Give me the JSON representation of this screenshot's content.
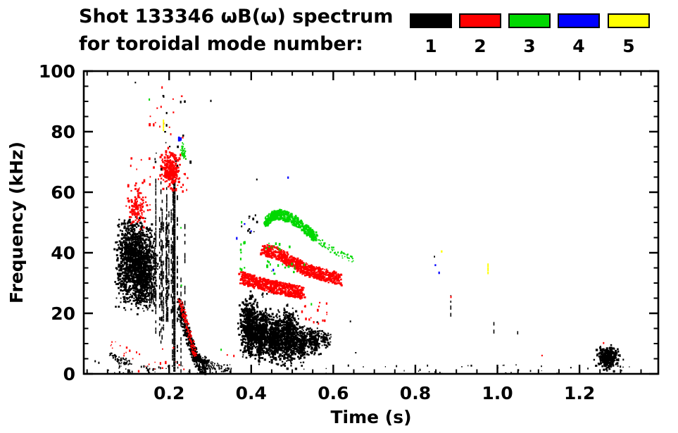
{
  "title": {
    "line1": "Shot 133346 ωB(ω) spectrum",
    "line2": "for toroidal mode number:"
  },
  "legend": {
    "entries": [
      {
        "label": "1",
        "color": "#000000"
      },
      {
        "label": "2",
        "color": "#ff0000"
      },
      {
        "label": "3",
        "color": "#00d800"
      },
      {
        "label": "4",
        "color": "#0000ff"
      },
      {
        "label": "5",
        "color": "#ffff00"
      }
    ]
  },
  "chart_data": {
    "type": "scatter",
    "title": "Shot 133346 ωB(ω) spectrum for toroidal mode number: 1 2 3 4 5",
    "xlabel": "Time (s)",
    "ylabel": "Frequency (kHz)",
    "xlim": [
      -0.008,
      1.392
    ],
    "ylim": [
      0,
      100
    ],
    "grid": false,
    "legend_position": "top-right",
    "xticks": {
      "major": [
        0.2,
        0.4,
        0.6,
        0.8,
        1.0,
        1.2
      ],
      "labels": [
        "0.2",
        "0.4",
        "0.6",
        "0.8",
        "1.0",
        "1.2"
      ],
      "minor_step": 0.05
    },
    "yticks": {
      "major": [
        0,
        20,
        40,
        60,
        80,
        100
      ],
      "labels": [
        "0",
        "20",
        "40",
        "60",
        "80",
        "100"
      ],
      "minor_step": 5
    },
    "series": [
      {
        "name": "toroidal mode n=1",
        "color": "#000000",
        "clusters": [
          {
            "type": "gauss",
            "cx": 0.115,
            "cy": 37.5,
            "sx": 0.021,
            "sy": 6.0,
            "n": 1300,
            "size": 2.6
          },
          {
            "type": "gauss",
            "cx": 0.136,
            "cy": 29.5,
            "sx": 0.012,
            "sy": 4.0,
            "n": 320,
            "size": 2.4
          },
          {
            "type": "vlines",
            "t0": 0.148,
            "t1": 0.244,
            "fb": [
              4,
              26
            ],
            "ft": [
              42,
              66
            ],
            "n": 24,
            "w": 1.6
          },
          {
            "type": "vdash",
            "t": 0.21,
            "f0": 1,
            "f1": 63.5,
            "w": 3.2,
            "solid": true
          },
          {
            "type": "vdash",
            "t": 0.2185,
            "f0": 2,
            "f1": 59,
            "w": 1.8,
            "solid": false
          },
          {
            "type": "vdash",
            "t": 0.2275,
            "f0": 1.5,
            "f1": 34,
            "w": 1.5,
            "solid": false
          },
          {
            "type": "box",
            "t0": 0.16,
            "t1": 0.25,
            "f0": 64,
            "f1": 93,
            "n": 22,
            "size": 2.2
          },
          {
            "type": "pts",
            "pts": [
              [
                0.116,
                96.5
              ],
              [
                0.3,
                90.5
              ],
              [
                0.185,
                92
              ],
              [
                0.018,
                4.5
              ],
              [
                0.027,
                4
              ]
            ],
            "size": 2
          },
          {
            "type": "band",
            "pts": [
              [
                0.222,
                23
              ],
              [
                0.244,
                13
              ],
              [
                0.264,
                5
              ],
              [
                0.288,
                1.5
              ]
            ],
            "th": 5,
            "n": 430,
            "size": 2.4
          },
          {
            "type": "band",
            "pts": [
              [
                0.28,
                5
              ],
              [
                0.308,
                2.5
              ],
              [
                0.345,
                2
              ]
            ],
            "th": 2.5,
            "n": 90,
            "size": 1.8
          },
          {
            "type": "band",
            "pts": [
              [
                0.057,
                6.5
              ],
              [
                0.08,
                4.5
              ],
              [
                0.102,
                4
              ]
            ],
            "th": 2,
            "n": 70,
            "size": 1.8
          },
          {
            "type": "box",
            "t0": 0.05,
            "t1": 0.36,
            "f0": 0.3,
            "f1": 3,
            "n": 46,
            "size": 1.7
          },
          {
            "type": "gauss",
            "cx": 0.394,
            "cy": 15.5,
            "sx": 0.011,
            "sy": 4.2,
            "n": 520,
            "size": 2.6
          },
          {
            "type": "gauss",
            "cx": 0.424,
            "cy": 13.0,
            "sx": 0.009,
            "sy": 3.6,
            "n": 400,
            "size": 2.6
          },
          {
            "type": "gauss",
            "cx": 0.455,
            "cy": 11.5,
            "sx": 0.008,
            "sy": 3.2,
            "n": 320,
            "size": 2.6
          },
          {
            "type": "gauss",
            "cx": 0.488,
            "cy": 12.5,
            "sx": 0.011,
            "sy": 4.0,
            "n": 520,
            "size": 2.6
          },
          {
            "type": "gauss",
            "cx": 0.521,
            "cy": 10.5,
            "sx": 0.007,
            "sy": 2.8,
            "n": 220,
            "size": 2.4
          },
          {
            "type": "gauss",
            "cx": 0.548,
            "cy": 11.5,
            "sx": 0.008,
            "sy": 2.2,
            "n": 190,
            "size": 2.4
          },
          {
            "type": "gauss",
            "cx": 0.578,
            "cy": 11.5,
            "sx": 0.006,
            "sy": 1.4,
            "n": 70,
            "size": 2.2
          },
          {
            "type": "band",
            "pts": [
              [
                0.378,
                20
              ],
              [
                0.43,
                19
              ],
              [
                0.47,
                17
              ],
              [
                0.515,
                15
              ]
            ],
            "th": 3,
            "n": 170,
            "size": 2.2
          },
          {
            "type": "box",
            "t0": 0.378,
            "t1": 0.455,
            "f0": 23,
            "f1": 30,
            "n": 16,
            "size": 2.0
          },
          {
            "type": "box",
            "t0": 0.388,
            "t1": 0.414,
            "f0": 47,
            "f1": 54,
            "n": 9,
            "size": 2.0
          },
          {
            "type": "pts",
            "pts": [
              [
                0.412,
                64.5
              ],
              [
                0.375,
                49
              ],
              [
                0.49,
                53.5
              ],
              [
                0.64,
                17.6
              ],
              [
                0.653,
                7.2
              ],
              [
                0.59,
                10
              ]
            ],
            "size": 2
          },
          {
            "type": "vdash",
            "t": 0.885,
            "f0": 16,
            "f1": 26,
            "w": 1.6,
            "solid": false
          },
          {
            "type": "pts",
            "pts": [
              [
                0.845,
                39
              ]
            ],
            "size": 1.8
          },
          {
            "type": "vdash",
            "t": 0.99,
            "f0": 12.5,
            "f1": 19,
            "w": 1.6,
            "solid": false
          },
          {
            "type": "vdash",
            "t": 1.048,
            "f0": 14,
            "f1": 17.5,
            "w": 1.6,
            "solid": false
          },
          {
            "type": "gauss",
            "cx": 1.266,
            "cy": 5.5,
            "sx": 0.012,
            "sy": 1.7,
            "n": 280,
            "size": 2.6
          },
          {
            "type": "pts",
            "pts": [
              [
                1.297,
                6.5
              ],
              [
                1.305,
                5
              ],
              [
                1.24,
                3
              ]
            ],
            "size": 2
          },
          {
            "type": "box",
            "t0": 0.52,
            "t1": 1.35,
            "f0": 0.3,
            "f1": 3.2,
            "n": 40,
            "size": 1.6
          }
        ]
      },
      {
        "name": "toroidal mode n=2",
        "color": "#ff0000",
        "clusters": [
          {
            "type": "gauss",
            "cx": 0.118,
            "cy": 55.5,
            "sx": 0.012,
            "sy": 3.0,
            "n": 130,
            "size": 2.4
          },
          {
            "type": "box",
            "t0": 0.095,
            "t1": 0.17,
            "f0": 60,
            "f1": 72,
            "n": 14,
            "size": 2.2
          },
          {
            "type": "gauss",
            "cx": 0.201,
            "cy": 67.5,
            "sx": 0.011,
            "sy": 2.3,
            "n": 260,
            "size": 2.6
          },
          {
            "type": "box",
            "t0": 0.17,
            "t1": 0.245,
            "f0": 60,
            "f1": 75,
            "n": 26,
            "size": 2.2
          },
          {
            "type": "box",
            "t0": 0.14,
            "t1": 0.24,
            "f0": 78,
            "f1": 92,
            "n": 13,
            "size": 2.2
          },
          {
            "type": "band",
            "pts": [
              [
                0.224,
                25
              ],
              [
                0.243,
                16
              ],
              [
                0.262,
                6
              ]
            ],
            "th": 1.6,
            "n": 110,
            "size": 2.0
          },
          {
            "type": "box",
            "t0": 0.055,
            "t1": 0.105,
            "f0": 6,
            "f1": 11,
            "n": 12,
            "size": 1.8
          },
          {
            "type": "box",
            "t0": 0.1,
            "t1": 0.24,
            "f0": 1,
            "f1": 9,
            "n": 16,
            "size": 1.8
          },
          {
            "type": "band",
            "pts": [
              [
                0.373,
                32
              ],
              [
                0.41,
                30.5
              ],
              [
                0.45,
                29
              ],
              [
                0.49,
                28
              ],
              [
                0.525,
                27
              ]
            ],
            "th": 4.2,
            "n": 640,
            "size": 2.5
          },
          {
            "type": "band",
            "pts": [
              [
                0.425,
                41.5
              ],
              [
                0.465,
                40
              ],
              [
                0.5,
                37
              ],
              [
                0.535,
                34.5
              ],
              [
                0.575,
                33
              ],
              [
                0.615,
                31.5
              ]
            ],
            "th": 4.0,
            "n": 720,
            "size": 2.5
          },
          {
            "type": "box",
            "t0": 0.52,
            "t1": 0.585,
            "f0": 17,
            "f1": 26,
            "n": 15,
            "size": 2.0
          },
          {
            "type": "pts",
            "pts": [
              [
                0.885,
                25.8
              ],
              [
                1.107,
                6.3
              ],
              [
                1.257,
                10.5
              ],
              [
                0.34,
                6.5
              ],
              [
                0.356,
                6.3
              ],
              [
                0.181,
                95
              ],
              [
                0.562,
                17
              ],
              [
                0.208,
                91
              ]
            ],
            "size": 2
          }
        ]
      },
      {
        "name": "toroidal mode n=3",
        "color": "#00d800",
        "clusters": [
          {
            "type": "band",
            "pts": [
              [
                0.2285,
                76
              ],
              [
                0.232,
                73.5
              ],
              [
                0.235,
                71.5
              ]
            ],
            "th": 1.5,
            "n": 36,
            "size": 2.0
          },
          {
            "type": "box",
            "t0": 0.371,
            "t1": 0.383,
            "f0": 34,
            "f1": 50,
            "n": 9,
            "size": 2.0
          },
          {
            "type": "band",
            "pts": [
              [
                0.432,
                50
              ],
              [
                0.452,
                52.5
              ],
              [
                0.472,
                53
              ],
              [
                0.503,
                51
              ],
              [
                0.532,
                48
              ],
              [
                0.555,
                45.5
              ]
            ],
            "th": 3.2,
            "n": 470,
            "size": 2.5
          },
          {
            "type": "band",
            "pts": [
              [
                0.558,
                44.5
              ],
              [
                0.59,
                41.5
              ],
              [
                0.625,
                39.5
              ],
              [
                0.647,
                38
              ]
            ],
            "th": 2.2,
            "n": 55,
            "size": 2.0
          },
          {
            "type": "box",
            "t0": 0.43,
            "t1": 0.505,
            "f0": 33,
            "f1": 38,
            "n": 14,
            "size": 2.2
          },
          {
            "type": "box",
            "t0": 0.43,
            "t1": 0.5,
            "f0": 41,
            "f1": 44,
            "n": 10,
            "size": 2.0
          },
          {
            "type": "pts",
            "pts": [
              [
                0.325,
                8.3
              ],
              [
                0.375,
                50.5
              ],
              [
                0.227,
                48.5
              ],
              [
                0.228,
                29.5
              ],
              [
                0.528,
                36.5
              ],
              [
                0.545,
                23.4
              ],
              [
                0.15,
                91
              ]
            ],
            "size": 2
          }
        ]
      },
      {
        "name": "toroidal mode n=4",
        "color": "#0000ff",
        "clusters": [
          {
            "type": "box",
            "t0": 0.2215,
            "t1": 0.2265,
            "f0": 77,
            "f1": 80,
            "n": 7,
            "size": 2.2
          },
          {
            "type": "pts",
            "pts": [
              [
                0.488,
                65.2
              ],
              [
                0.382,
                49.8
              ],
              [
                0.398,
                47.4
              ],
              [
                0.363,
                45.2
              ],
              [
                0.452,
                34.7
              ],
              [
                0.847,
                36.2
              ],
              [
                0.856,
                33.8
              ]
            ],
            "size": 2.2
          }
        ]
      },
      {
        "name": "toroidal mode n=5",
        "color": "#ffff00",
        "clusters": [
          {
            "type": "vdash",
            "t": 0.1845,
            "f0": 80.8,
            "f1": 84,
            "w": 2,
            "solid": true
          },
          {
            "type": "pts",
            "pts": [
              [
                0.862,
                40.8
              ]
            ],
            "size": 2.4
          },
          {
            "type": "vdash",
            "t": 0.9755,
            "f0": 33,
            "f1": 36.5,
            "w": 2,
            "solid": true
          }
        ]
      }
    ]
  }
}
